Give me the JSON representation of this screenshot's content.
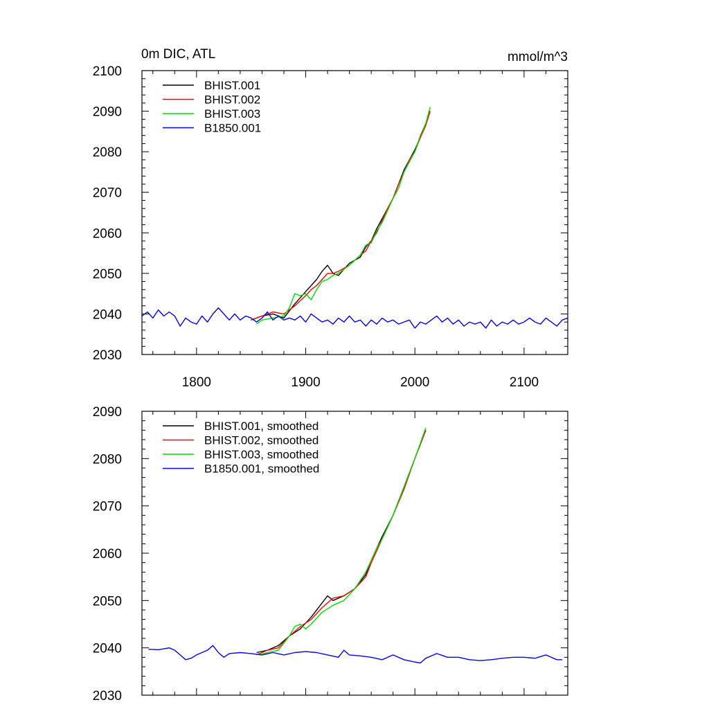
{
  "chart_data": [
    {
      "type": "line",
      "title": "0m DIC, ATL",
      "units": "mmol/m^3",
      "xlim": [
        1750,
        2140
      ],
      "ylim": [
        2030,
        2100
      ],
      "x_ticks": [
        1800,
        1900,
        2000,
        2100
      ],
      "y_ticks": [
        2030,
        2040,
        2050,
        2060,
        2070,
        2080,
        2090,
        2100
      ],
      "show_x_tick_labels": true,
      "grid": false,
      "legend_position": "top-left",
      "series": [
        {
          "name": "BHIST.001",
          "color": "#000000",
          "x": [
            1850,
            1860,
            1870,
            1880,
            1890,
            1900,
            1905,
            1910,
            1915,
            1920,
            1925,
            1930,
            1940,
            1950,
            1955,
            1960,
            1965,
            1970,
            1975,
            1980,
            1985,
            1990,
            1995,
            2000,
            2005,
            2010,
            2014
          ],
          "y": [
            2038.5,
            2039.5,
            2040.0,
            2039.0,
            2042.5,
            2045.5,
            2047.0,
            2048.5,
            2050.5,
            2052.0,
            2050.0,
            2049.5,
            2052.5,
            2054.0,
            2056.5,
            2058.0,
            2061.0,
            2063.5,
            2066.0,
            2068.5,
            2072.0,
            2075.5,
            2078.0,
            2080.5,
            2083.5,
            2087.0,
            2090.0
          ]
        },
        {
          "name": "BHIST.002",
          "color": "#ff0000",
          "x": [
            1850,
            1860,
            1870,
            1880,
            1890,
            1900,
            1905,
            1910,
            1915,
            1920,
            1925,
            1930,
            1940,
            1950,
            1955,
            1960,
            1965,
            1970,
            1975,
            1980,
            1985,
            1990,
            1995,
            2000,
            2005,
            2010,
            2014
          ],
          "y": [
            2038.5,
            2039.5,
            2040.5,
            2040.0,
            2042.0,
            2044.5,
            2046.0,
            2047.0,
            2048.5,
            2050.0,
            2050.0,
            2050.5,
            2052.0,
            2054.5,
            2055.5,
            2058.0,
            2060.0,
            2063.0,
            2066.0,
            2068.5,
            2072.0,
            2075.0,
            2078.0,
            2080.0,
            2083.5,
            2086.5,
            2090.0
          ]
        },
        {
          "name": "BHIST.003",
          "color": "#00dd00",
          "x": [
            1855,
            1860,
            1870,
            1880,
            1885,
            1890,
            1895,
            1900,
            1905,
            1910,
            1915,
            1920,
            1925,
            1930,
            1940,
            1950,
            1955,
            1960,
            1965,
            1970,
            1975,
            1980,
            1985,
            1990,
            1995,
            2000,
            2005,
            2010,
            2014
          ],
          "y": [
            2037.5,
            2038.5,
            2039.0,
            2039.5,
            2041.5,
            2045.0,
            2044.5,
            2045.0,
            2043.5,
            2046.0,
            2048.0,
            2048.5,
            2049.5,
            2050.0,
            2052.0,
            2054.5,
            2057.0,
            2057.5,
            2060.5,
            2062.5,
            2065.5,
            2068.5,
            2071.0,
            2075.0,
            2077.5,
            2080.0,
            2084.0,
            2087.0,
            2091.0
          ]
        },
        {
          "name": "B1850.001",
          "color": "#0000ee",
          "x": [
            1750,
            1755,
            1760,
            1765,
            1770,
            1775,
            1780,
            1785,
            1790,
            1795,
            1800,
            1805,
            1810,
            1815,
            1820,
            1825,
            1830,
            1835,
            1840,
            1845,
            1850,
            1855,
            1860,
            1865,
            1870,
            1875,
            1880,
            1885,
            1890,
            1895,
            1900,
            1905,
            1910,
            1915,
            1920,
            1925,
            1930,
            1935,
            1940,
            1945,
            1950,
            1955,
            1960,
            1965,
            1970,
            1975,
            1980,
            1985,
            1990,
            1995,
            2000,
            2005,
            2010,
            2015,
            2020,
            2025,
            2030,
            2035,
            2040,
            2045,
            2050,
            2055,
            2060,
            2065,
            2070,
            2075,
            2080,
            2085,
            2090,
            2095,
            2100,
            2105,
            2110,
            2115,
            2120,
            2125,
            2130,
            2135,
            2140
          ],
          "y": [
            2039.5,
            2040.5,
            2039.0,
            2041.0,
            2039.5,
            2040.5,
            2039.5,
            2037.0,
            2039.0,
            2038.0,
            2037.5,
            2039.5,
            2038.0,
            2040.0,
            2041.5,
            2040.0,
            2038.5,
            2040.0,
            2038.5,
            2039.5,
            2039.0,
            2038.0,
            2039.0,
            2040.5,
            2038.5,
            2039.5,
            2038.5,
            2039.0,
            2038.5,
            2039.5,
            2038.0,
            2040.0,
            2039.0,
            2038.0,
            2038.5,
            2037.5,
            2039.0,
            2038.0,
            2039.5,
            2038.0,
            2038.5,
            2037.0,
            2038.5,
            2037.5,
            2039.0,
            2038.0,
            2038.5,
            2037.5,
            2038.0,
            2038.5,
            2036.5,
            2038.0,
            2037.5,
            2038.5,
            2039.5,
            2038.0,
            2039.0,
            2037.5,
            2038.5,
            2037.0,
            2038.0,
            2037.5,
            2038.0,
            2036.5,
            2038.5,
            2037.0,
            2038.0,
            2037.5,
            2038.5,
            2037.5,
            2038.0,
            2039.0,
            2038.0,
            2037.5,
            2039.0,
            2038.0,
            2037.0,
            2038.5,
            2039.0
          ]
        }
      ]
    },
    {
      "type": "line",
      "xlim": [
        1750,
        2140
      ],
      "ylim": [
        2030,
        2090
      ],
      "x_ticks": [
        1800,
        1900,
        2000,
        2100
      ],
      "y_ticks": [
        2030,
        2040,
        2050,
        2060,
        2070,
        2080,
        2090
      ],
      "show_x_tick_labels": false,
      "grid": false,
      "legend_position": "top-left",
      "series": [
        {
          "name": "BHIST.001, smoothed",
          "color": "#000000",
          "x": [
            1855,
            1865,
            1875,
            1885,
            1895,
            1905,
            1915,
            1920,
            1925,
            1935,
            1945,
            1955,
            1960,
            1965,
            1970,
            1980,
            1990,
            2000,
            2010
          ],
          "y": [
            2039.0,
            2039.5,
            2040.5,
            2042.5,
            2044.0,
            2046.5,
            2049.5,
            2051.0,
            2050.0,
            2051.0,
            2052.5,
            2055.5,
            2058.5,
            2061.0,
            2063.5,
            2068.0,
            2074.0,
            2080.0,
            2086.0
          ]
        },
        {
          "name": "BHIST.002, smoothed",
          "color": "#ff0000",
          "x": [
            1855,
            1865,
            1875,
            1885,
            1895,
            1905,
            1915,
            1925,
            1935,
            1945,
            1955,
            1960,
            1965,
            1970,
            1980,
            1990,
            2000,
            2010
          ],
          "y": [
            2038.5,
            2039.5,
            2040.0,
            2042.5,
            2044.5,
            2046.0,
            2048.5,
            2050.5,
            2051.0,
            2052.5,
            2055.0,
            2058.0,
            2060.5,
            2063.0,
            2068.0,
            2073.5,
            2080.0,
            2086.0
          ]
        },
        {
          "name": "BHIST.003, smoothed",
          "color": "#00dd00",
          "x": [
            1857,
            1865,
            1875,
            1885,
            1890,
            1895,
            1900,
            1905,
            1915,
            1925,
            1935,
            1945,
            1955,
            1960,
            1965,
            1970,
            1980,
            1990,
            2000,
            2010
          ],
          "y": [
            2038.5,
            2039.0,
            2039.5,
            2042.5,
            2044.5,
            2045.0,
            2044.0,
            2045.0,
            2047.5,
            2049.0,
            2050.0,
            2052.5,
            2056.0,
            2058.5,
            2061.0,
            2063.0,
            2068.0,
            2074.0,
            2080.0,
            2086.5
          ]
        },
        {
          "name": "B1850.001, smoothed",
          "color": "#0000ee",
          "x": [
            1756,
            1765,
            1775,
            1780,
            1785,
            1790,
            1795,
            1800,
            1810,
            1815,
            1820,
            1825,
            1830,
            1840,
            1850,
            1860,
            1870,
            1880,
            1890,
            1900,
            1910,
            1920,
            1930,
            1935,
            1940,
            1950,
            1960,
            1970,
            1980,
            1990,
            2000,
            2005,
            2010,
            2020,
            2030,
            2040,
            2050,
            2060,
            2070,
            2080,
            2090,
            2100,
            2110,
            2120,
            2130,
            2135
          ],
          "y": [
            2039.7,
            2039.6,
            2040.0,
            2039.5,
            2038.5,
            2037.5,
            2037.8,
            2038.5,
            2039.5,
            2040.5,
            2039.0,
            2038.0,
            2038.8,
            2039.0,
            2038.8,
            2038.5,
            2039.0,
            2038.5,
            2039.0,
            2039.2,
            2039.0,
            2038.5,
            2038.0,
            2039.5,
            2038.5,
            2038.3,
            2038.0,
            2037.5,
            2038.5,
            2037.5,
            2037.0,
            2036.8,
            2037.8,
            2038.8,
            2038.0,
            2038.0,
            2037.5,
            2037.3,
            2037.5,
            2037.8,
            2038.0,
            2038.0,
            2037.8,
            2038.5,
            2037.5,
            2037.5
          ]
        }
      ]
    }
  ]
}
